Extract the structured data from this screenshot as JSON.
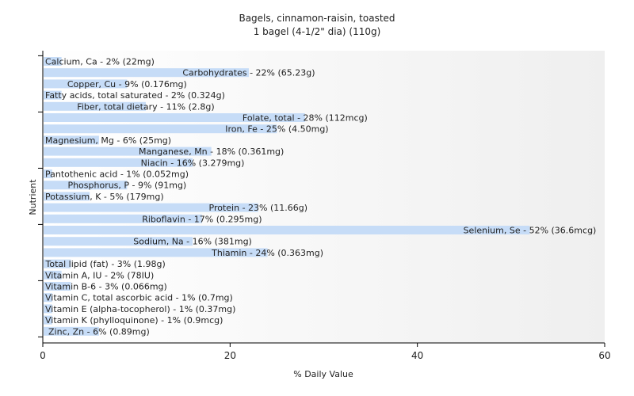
{
  "chart_data": {
    "type": "bar",
    "orientation": "horizontal",
    "title": "Bagels, cinnamon-raisin, toasted",
    "subtitle": "1 bagel (4-1/2\" dia) (110g)",
    "xlabel": "% Daily Value",
    "ylabel": "Nutrient",
    "xlim": [
      0,
      60
    ],
    "xticks": [
      0,
      20,
      40,
      60
    ],
    "grid": false,
    "bar_color": "#c6dcf7",
    "categories": [
      "Calcium, Ca",
      "Carbohydrates",
      "Copper, Cu",
      "Fatty acids, total saturated",
      "Fiber, total dietary",
      "Folate, total",
      "Iron, Fe",
      "Magnesium, Mg",
      "Manganese, Mn",
      "Niacin",
      "Pantothenic acid",
      "Phosphorus, P",
      "Potassium, K",
      "Protein",
      "Riboflavin",
      "Selenium, Se",
      "Sodium, Na",
      "Thiamin",
      "Total lipid (fat)",
      "Vitamin A, IU",
      "Vitamin B-6",
      "Vitamin C, total ascorbic acid",
      "Vitamin E (alpha-tocopherol)",
      "Vitamin K (phylloquinone)",
      "Zinc, Zn"
    ],
    "values": [
      2,
      22,
      9,
      2,
      11,
      28,
      25,
      6,
      18,
      16,
      1,
      9,
      5,
      23,
      17,
      52,
      16,
      24,
      3,
      2,
      3,
      1,
      1,
      1,
      6
    ],
    "labels": [
      "Calcium, Ca - 2% (22mg)",
      "Carbohydrates - 22% (65.23g)",
      "Copper, Cu - 9% (0.176mg)",
      "Fatty acids, total saturated - 2% (0.324g)",
      "Fiber, total dietary - 11% (2.8g)",
      "Folate, total - 28% (112mcg)",
      "Iron, Fe - 25% (4.50mg)",
      "Magnesium, Mg - 6% (25mg)",
      "Manganese, Mn - 18% (0.361mg)",
      "Niacin - 16% (3.279mg)",
      "Pantothenic acid - 1% (0.052mg)",
      "Phosphorus, P - 9% (91mg)",
      "Potassium, K - 5% (179mg)",
      "Protein - 23% (11.66g)",
      "Riboflavin - 17% (0.295mg)",
      "Selenium, Se - 52% (36.6mcg)",
      "Sodium, Na - 16% (381mg)",
      "Thiamin - 24% (0.363mg)",
      "Total lipid (fat) - 3% (1.98g)",
      "Vitamin A, IU - 2% (78IU)",
      "Vitamin B-6 - 3% (0.066mg)",
      "Vitamin C, total ascorbic acid - 1% (0.7mg)",
      "Vitamin E (alpha-tocopherol) - 1% (0.37mg)",
      "Vitamin K (phylloquinone) - 1% (0.9mcg)",
      "Zinc, Zn - 6% (0.89mg)"
    ]
  }
}
